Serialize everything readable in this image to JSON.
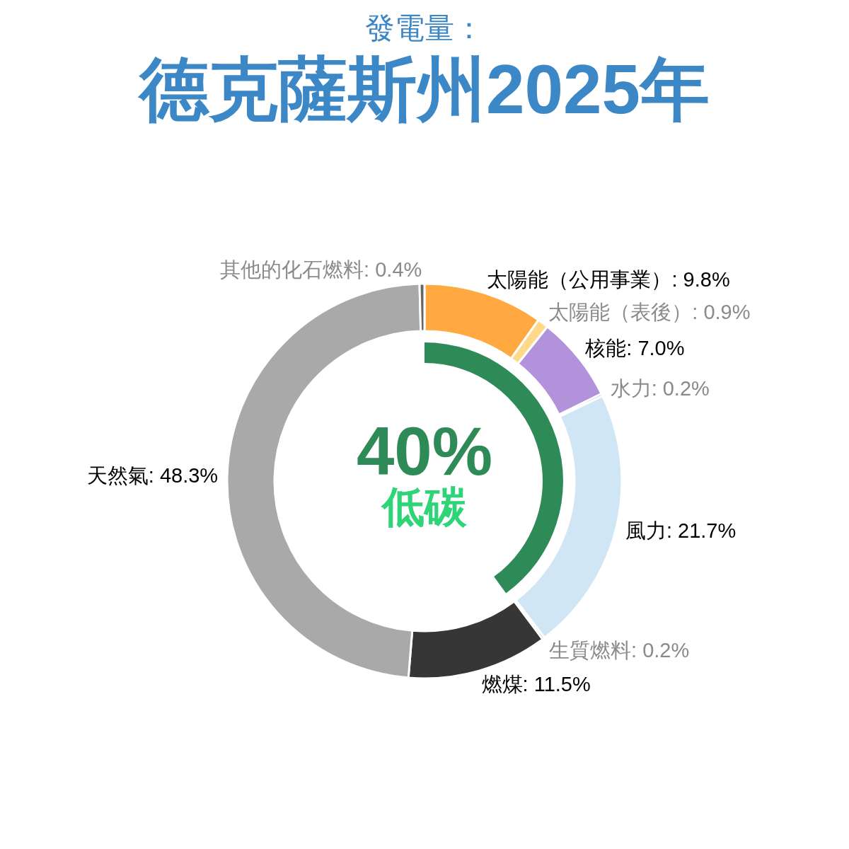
{
  "chart_data": [
    {
      "type": "donut",
      "title": "德克薩斯州2025年",
      "subtitle": "發電量：",
      "categories": [
        "太陽能（公用事業）",
        "太陽能（表後）",
        "核能",
        "水力",
        "風力",
        "生質燃料",
        "燃煤",
        "天然氣",
        "其他的化石燃料"
      ],
      "values": [
        9.8,
        0.9,
        7.0,
        0.2,
        21.7,
        0.2,
        11.5,
        48.3,
        0.4
      ],
      "colors": [
        "#ffa940",
        "#ffd98a",
        "#b392dc",
        "#4b8bbe",
        "#d0e6f5",
        "#7bb661",
        "#363636",
        "#a9a9a9",
        "#666666"
      ],
      "value_labels": [
        "9.8%",
        "0.9%",
        "7.0%",
        "0.2%",
        "21.7%",
        "0.2%",
        "11.5%",
        "48.3%",
        "0.4%"
      ]
    },
    {
      "type": "pie",
      "categories": [
        "低碳"
      ],
      "values": [
        40
      ],
      "colors": [
        "#2e8b57"
      ],
      "value_labels": [
        "40%"
      ]
    }
  ]
}
